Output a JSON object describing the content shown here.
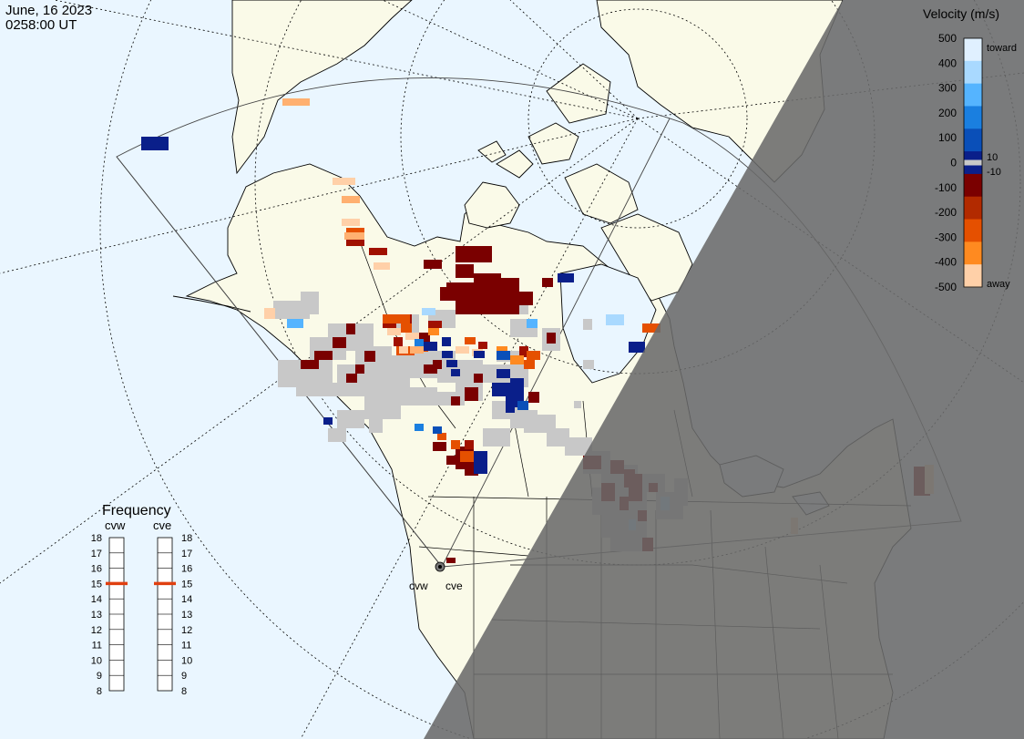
{
  "header": {
    "date": "June, 16 2023",
    "time": "0258:00 UT"
  },
  "legend": {
    "title": "Velocity (m/s)",
    "ticks": [
      "500",
      "400",
      "300",
      "200",
      "100",
      "0",
      "-100",
      "-200",
      "-300",
      "-400",
      "-500"
    ],
    "toward_label": "toward",
    "away_label": "away",
    "plus_label": "10",
    "minus_label": "-10",
    "colors": [
      "#e0f0ff",
      "#a9d9ff",
      "#55b4ff",
      "#1a7fe0",
      "#0a4fb8",
      "#0a1f8a",
      "#7a0000",
      "#b22a00",
      "#e55000",
      "#ff8a20",
      "#ffd0a8"
    ],
    "ground_scatter_color": "#c8c8c8"
  },
  "frequency": {
    "title": "Frequency",
    "left_radar": "cvw",
    "right_radar": "cve",
    "scale_labels": [
      "18",
      "17",
      "16",
      "15",
      "14",
      "13",
      "12",
      "11",
      "10",
      "9",
      "8"
    ],
    "left_value_mhz": 15,
    "right_value_mhz": 15,
    "marker_color": "#e04010"
  },
  "radars": {
    "west_label": "cvw",
    "east_label": "cve"
  },
  "map": {
    "ocean_color": "#eaf6ff",
    "land_color": "#fafae8",
    "night_color": "#7a7a7a"
  }
}
